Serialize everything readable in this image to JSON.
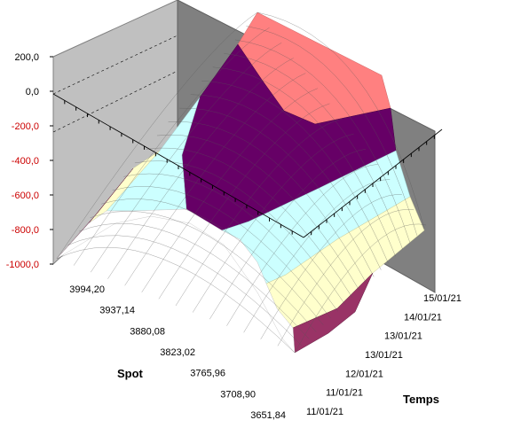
{
  "chart_data": {
    "type": "surface",
    "title": "",
    "xlabel": "Spot",
    "ylabel": "Temps",
    "zlabel": "",
    "z_ticks": [
      "200,0",
      "0,0",
      "-200,0",
      "-400,0",
      "-600,0",
      "-800,0",
      "-1000,0"
    ],
    "z_values": [
      200,
      0,
      -200,
      -400,
      -600,
      -800,
      -1000
    ],
    "zlim": [
      -1000,
      200
    ],
    "spot_ticks": [
      "3994,20",
      "3937,14",
      "3880,08",
      "3823,02",
      "3765,96",
      "3708,90",
      "3651,84"
    ],
    "spot_values": [
      3994.2,
      3937.14,
      3880.08,
      3823.02,
      3765.96,
      3708.9,
      3651.84
    ],
    "time_ticks": [
      "11/01/21",
      "11/01/21",
      "12/01/21",
      "13/01/21",
      "13/01/21",
      "14/01/21",
      "15/01/21"
    ],
    "bands": [
      {
        "range": [
          -1000,
          -800
        ],
        "color": "#993366"
      },
      {
        "range": [
          -800,
          -600
        ],
        "color": "#ffffcc"
      },
      {
        "range": [
          -600,
          -400
        ],
        "color": "#ccffff"
      },
      {
        "range": [
          -400,
          -200
        ],
        "color": "#ffffff"
      },
      {
        "range": [
          -200,
          0
        ],
        "color": "#660066"
      },
      {
        "range": [
          0,
          200
        ],
        "color": "#ff8080"
      }
    ],
    "wall_colors": {
      "left_wall": "#c0c0c0",
      "back_wall": "#808080"
    },
    "grid": true
  }
}
